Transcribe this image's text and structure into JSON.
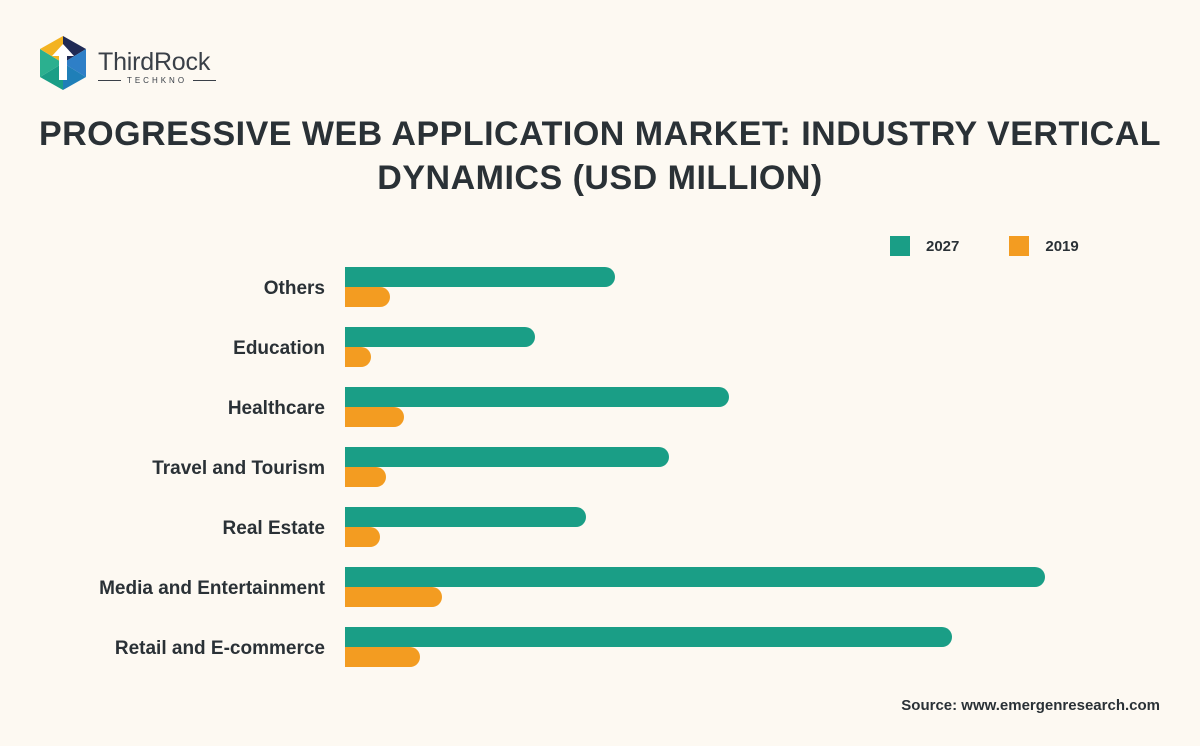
{
  "brand": {
    "name": "ThirdRock",
    "tagline": "TECHKNO",
    "logo_icon": "hexagon-arrow-logo"
  },
  "title": "PROGRESSIVE WEB APPLICATION MARKET: INDUSTRY VERTICAL DYNAMICS (USD MILLION)",
  "source": "Source: www.emergenresearch.com",
  "colors": {
    "series_2027": "#1a9e86",
    "series_2019": "#f39c21",
    "background": "#fdf9f2"
  },
  "chart_data": {
    "type": "bar",
    "orientation": "horizontal",
    "title": "PROGRESSIVE WEB APPLICATION MARKET: INDUSTRY VERTICAL DYNAMICS (USD MILLION)",
    "categories": [
      "Others",
      "Education",
      "Healthcare",
      "Travel and Tourism",
      "Real Estate",
      "Media and Entertainment",
      "Retail and E-commerce"
    ],
    "series": [
      {
        "name": "2027",
        "color": "#1a9e86",
        "values": [
          270,
          190,
          384,
          324,
          241,
          700,
          607
        ]
      },
      {
        "name": "2019",
        "color": "#f39c21",
        "values": [
          45,
          26,
          59,
          41,
          35,
          97,
          75
        ]
      }
    ],
    "xlim": [
      0,
      700
    ],
    "legend": "top-right",
    "grid": false,
    "axis_values_shown": false
  }
}
